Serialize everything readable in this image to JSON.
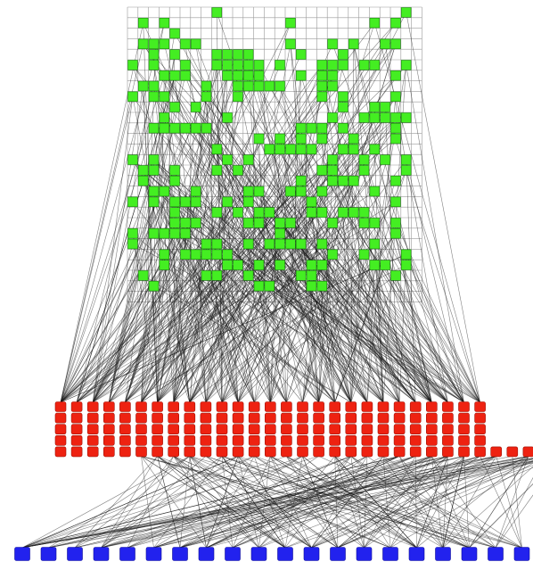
{
  "diagram": {
    "type": "layered-network-graph",
    "colors": {
      "background": "#ffffff",
      "grid": "#9a9a9a",
      "edge": "#1a1a1a",
      "green_node": "#44ee22",
      "red_node": "#ee2211",
      "blue_node": "#2222ee"
    },
    "layers": [
      {
        "name": "grid-layer",
        "color": "green",
        "grid_columns": 28,
        "grid_rows": 28,
        "node_count": 220
      },
      {
        "name": "middle-layer",
        "color": "red",
        "node_count": 140,
        "columns": 27,
        "rows": 5
      },
      {
        "name": "bottom-layer",
        "color": "blue",
        "node_count": 20
      }
    ],
    "edge_counts": {
      "grid_to_middle": 480,
      "middle_to_bottom": 230
    }
  }
}
